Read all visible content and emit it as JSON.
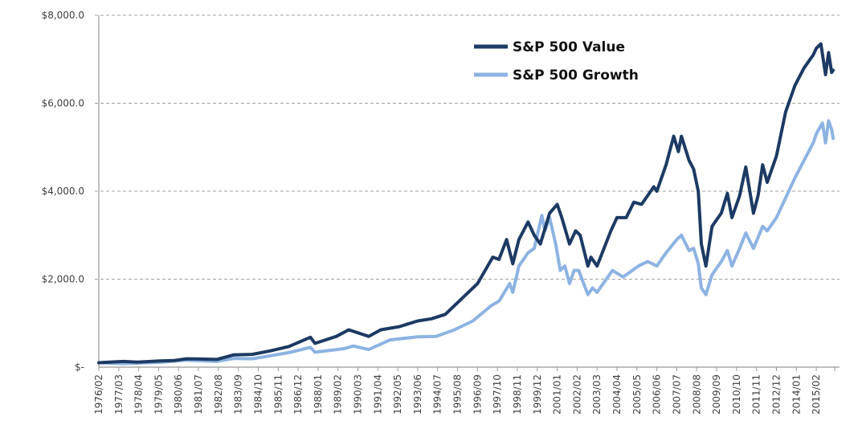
{
  "chart_data": {
    "type": "line",
    "title": "",
    "xlabel": "",
    "ylabel": "",
    "ylim": [
      0,
      8000
    ],
    "yticks": [
      {
        "value": 0,
        "label": "$-"
      },
      {
        "value": 2000,
        "label": "$2,000.0"
      },
      {
        "value": 4000,
        "label": "$4,000.0"
      },
      {
        "value": 6000,
        "label": "$6,000.0"
      },
      {
        "value": 8000,
        "label": "$8,000.0"
      }
    ],
    "x_range": [
      "1976/02",
      "2016/01"
    ],
    "x_tick_interval_months": 13,
    "xticks": [
      "1976/02",
      "1977/03",
      "1978/04",
      "1979/05",
      "1980/06",
      "1981/07",
      "1982/08",
      "1983/09",
      "1984/10",
      "1985/11",
      "1986/12",
      "1988/01",
      "1989/02",
      "1990/03",
      "1991/04",
      "1992/05",
      "1993/06",
      "1994/07",
      "1995/08",
      "1996/09",
      "1997/10",
      "1998/11",
      "1999/12",
      "2001/01",
      "2002/02",
      "2003/03",
      "2004/04",
      "2005/05",
      "2006/06",
      "2007/07",
      "2008/08",
      "2009/09",
      "2010/10",
      "2011/11",
      "2012/12",
      "2014/01",
      "2015/02"
    ],
    "grid": "horizontal-dashed",
    "legend_position": "top-center",
    "series": [
      {
        "name": "S&P 500 Value",
        "color": "#1c3a63",
        "points": [
          [
            "1976/02",
            100
          ],
          [
            "1977/06",
            130
          ],
          [
            "1978/03",
            115
          ],
          [
            "1979/06",
            140
          ],
          [
            "1980/03",
            150
          ],
          [
            "1980/11",
            190
          ],
          [
            "1981/09",
            185
          ],
          [
            "1982/07",
            175
          ],
          [
            "1983/06",
            280
          ],
          [
            "1984/06",
            290
          ],
          [
            "1985/06",
            370
          ],
          [
            "1986/06",
            470
          ],
          [
            "1987/08",
            680
          ],
          [
            "1987/11",
            540
          ],
          [
            "1989/01",
            700
          ],
          [
            "1989/09",
            850
          ],
          [
            "1990/10",
            700
          ],
          [
            "1991/06",
            850
          ],
          [
            "1992/06",
            920
          ],
          [
            "1993/06",
            1050
          ],
          [
            "1994/03",
            1100
          ],
          [
            "1994/12",
            1200
          ],
          [
            "1995/12",
            1600
          ],
          [
            "1996/09",
            1900
          ],
          [
            "1997/07",
            2500
          ],
          [
            "1997/11",
            2450
          ],
          [
            "1998/04",
            2900
          ],
          [
            "1998/08",
            2350
          ],
          [
            "1998/12",
            2900
          ],
          [
            "1999/06",
            3300
          ],
          [
            "1999/10",
            3000
          ],
          [
            "2000/02",
            2800
          ],
          [
            "2000/08",
            3500
          ],
          [
            "2001/01",
            3700
          ],
          [
            "2001/04",
            3400
          ],
          [
            "2001/09",
            2800
          ],
          [
            "2002/01",
            3100
          ],
          [
            "2002/04",
            3000
          ],
          [
            "2002/09",
            2300
          ],
          [
            "2002/11",
            2500
          ],
          [
            "2003/03",
            2300
          ],
          [
            "2003/12",
            3100
          ],
          [
            "2004/04",
            3400
          ],
          [
            "2004/10",
            3400
          ],
          [
            "2005/03",
            3750
          ],
          [
            "2005/08",
            3700
          ],
          [
            "2006/04",
            4100
          ],
          [
            "2006/06",
            4000
          ],
          [
            "2006/12",
            4600
          ],
          [
            "2007/05",
            5250
          ],
          [
            "2007/08",
            4900
          ],
          [
            "2007/10",
            5250
          ],
          [
            "2008/03",
            4700
          ],
          [
            "2008/06",
            4500
          ],
          [
            "2008/09",
            4000
          ],
          [
            "2008/11",
            2800
          ],
          [
            "2009/02",
            2300
          ],
          [
            "2009/06",
            3200
          ],
          [
            "2009/12",
            3500
          ],
          [
            "2010/04",
            3950
          ],
          [
            "2010/07",
            3400
          ],
          [
            "2010/12",
            3900
          ],
          [
            "2011/04",
            4550
          ],
          [
            "2011/09",
            3500
          ],
          [
            "2011/12",
            3900
          ],
          [
            "2012/03",
            4600
          ],
          [
            "2012/06",
            4200
          ],
          [
            "2012/12",
            4800
          ],
          [
            "2013/06",
            5800
          ],
          [
            "2013/12",
            6400
          ],
          [
            "2014/06",
            6800
          ],
          [
            "2014/12",
            7100
          ],
          [
            "2015/02",
            7250
          ],
          [
            "2015/05",
            7350
          ],
          [
            "2015/08",
            6650
          ],
          [
            "2015/10",
            7150
          ],
          [
            "2015/12",
            6700
          ],
          [
            "2016/01",
            6750
          ]
        ]
      },
      {
        "name": "S&P 500 Growth",
        "color": "#8db3e2",
        "points": [
          [
            "1976/02",
            100
          ],
          [
            "1977/06",
            80
          ],
          [
            "1978/06",
            95
          ],
          [
            "1979/06",
            110
          ],
          [
            "1980/11",
            160
          ],
          [
            "1982/07",
            130
          ],
          [
            "1983/06",
            200
          ],
          [
            "1984/06",
            190
          ],
          [
            "1985/06",
            260
          ],
          [
            "1986/06",
            330
          ],
          [
            "1987/08",
            450
          ],
          [
            "1987/11",
            340
          ],
          [
            "1989/06",
            420
          ],
          [
            "1989/12",
            480
          ],
          [
            "1990/10",
            400
          ],
          [
            "1991/12",
            620
          ],
          [
            "1993/06",
            690
          ],
          [
            "1994/06",
            700
          ],
          [
            "1995/06",
            850
          ],
          [
            "1996/06",
            1050
          ],
          [
            "1997/06",
            1400
          ],
          [
            "1997/11",
            1500
          ],
          [
            "1998/06",
            1900
          ],
          [
            "1998/08",
            1700
          ],
          [
            "1998/12",
            2300
          ],
          [
            "1999/06",
            2600
          ],
          [
            "1999/10",
            2700
          ],
          [
            "2000/03",
            3450
          ],
          [
            "2000/05",
            3100
          ],
          [
            "2000/08",
            3400
          ],
          [
            "2000/12",
            2800
          ],
          [
            "2001/03",
            2200
          ],
          [
            "2001/06",
            2300
          ],
          [
            "2001/09",
            1900
          ],
          [
            "2001/12",
            2200
          ],
          [
            "2002/03",
            2200
          ],
          [
            "2002/09",
            1650
          ],
          [
            "2002/12",
            1800
          ],
          [
            "2003/03",
            1700
          ],
          [
            "2004/01",
            2200
          ],
          [
            "2004/08",
            2050
          ],
          [
            "2005/06",
            2300
          ],
          [
            "2005/12",
            2400
          ],
          [
            "2006/06",
            2300
          ],
          [
            "2006/12",
            2600
          ],
          [
            "2007/07",
            2900
          ],
          [
            "2007/10",
            3000
          ],
          [
            "2008/03",
            2650
          ],
          [
            "2008/06",
            2700
          ],
          [
            "2008/09",
            2350
          ],
          [
            "2008/11",
            1800
          ],
          [
            "2009/02",
            1650
          ],
          [
            "2009/06",
            2100
          ],
          [
            "2009/12",
            2400
          ],
          [
            "2010/04",
            2650
          ],
          [
            "2010/07",
            2300
          ],
          [
            "2010/12",
            2700
          ],
          [
            "2011/04",
            3050
          ],
          [
            "2011/09",
            2700
          ],
          [
            "2012/03",
            3200
          ],
          [
            "2012/06",
            3100
          ],
          [
            "2012/12",
            3400
          ],
          [
            "2013/12",
            4300
          ],
          [
            "2014/06",
            4700
          ],
          [
            "2014/12",
            5100
          ],
          [
            "2015/02",
            5300
          ],
          [
            "2015/06",
            5550
          ],
          [
            "2015/08",
            5100
          ],
          [
            "2015/10",
            5600
          ],
          [
            "2015/12",
            5400
          ],
          [
            "2016/01",
            5200
          ]
        ]
      }
    ]
  }
}
